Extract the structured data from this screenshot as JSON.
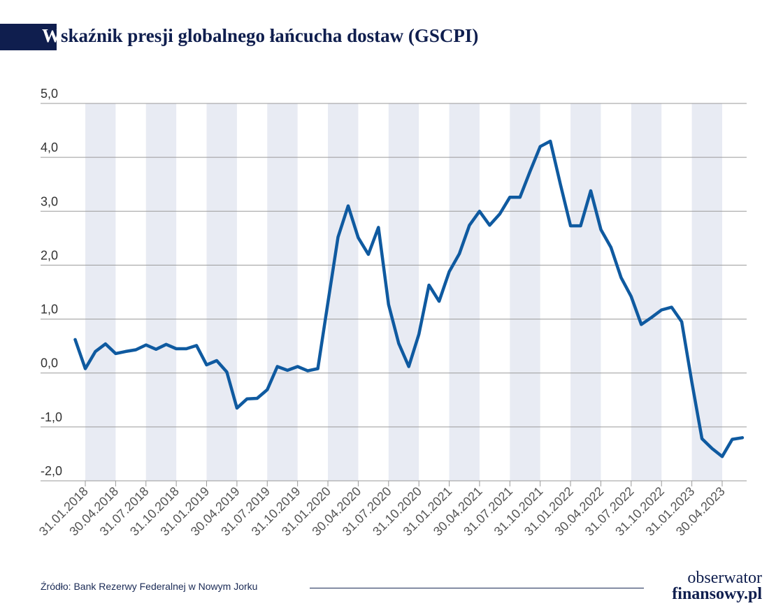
{
  "title": {
    "first_letter": "W",
    "rest": "skaźnik presji globalnego łańcucha dostaw (GSCPI)"
  },
  "source": "Źródło: Bank Rezerwy Federalnej w Nowym Jorku",
  "logo": {
    "line1": "obserwator",
    "line2": "finansowy.pl"
  },
  "colors": {
    "line": "#0f5aa0",
    "band": "#e8ebf3",
    "grid": "#9a9a9a",
    "title": "#0f1e4e"
  },
  "chart_data": {
    "type": "line",
    "title": "Wskaźnik presji globalnego łańcucha dostaw (GSCPI)",
    "xlabel": "",
    "ylabel": "",
    "ylim": [
      -2.0,
      5.0
    ],
    "yticks": [
      5.0,
      4.0,
      3.0,
      2.0,
      1.0,
      0.0,
      -1.0,
      -2.0
    ],
    "ytick_labels": [
      "5,0",
      "4,0",
      "3,0",
      "2,0",
      "1,0",
      "0,0",
      "-1,0",
      "-2,0"
    ],
    "xtick_labels": [
      "31.01.2018",
      "30.04.2018",
      "31.07.2018",
      "31.10.2018",
      "31.01.2019",
      "30.04.2019",
      "31.07.2019",
      "31.10.2019",
      "31.01.2020",
      "30.04.2020",
      "31.07.2020",
      "31.10.2020",
      "31.01.2021",
      "30.04.2021",
      "31.07.2021",
      "31.10.2021",
      "31.01.2022",
      "30.04.2022",
      "31.07.2022",
      "31.10.2022",
      "31.01.2023",
      "30.04.2023"
    ],
    "grid": true,
    "legend": "none",
    "series": [
      {
        "x": [
          "2017-12",
          "2018-01",
          "2018-02",
          "2018-03",
          "2018-04",
          "2018-05",
          "2018-06",
          "2018-07",
          "2018-08",
          "2018-09",
          "2018-10",
          "2018-11",
          "2018-12",
          "2019-01",
          "2019-02",
          "2019-03",
          "2019-04",
          "2019-05",
          "2019-06",
          "2019-07",
          "2019-08",
          "2019-09",
          "2019-10",
          "2019-11",
          "2019-12",
          "2020-01",
          "2020-02",
          "2020-03",
          "2020-04",
          "2020-05",
          "2020-06",
          "2020-07",
          "2020-08",
          "2020-09",
          "2020-10",
          "2020-11",
          "2020-12",
          "2021-01",
          "2021-02",
          "2021-03",
          "2021-04",
          "2021-05",
          "2021-06",
          "2021-07",
          "2021-08",
          "2021-09",
          "2021-10",
          "2021-11",
          "2021-12",
          "2022-01",
          "2022-02",
          "2022-03",
          "2022-04",
          "2022-05",
          "2022-06",
          "2022-07",
          "2022-08",
          "2022-09",
          "2022-10",
          "2022-11",
          "2022-12",
          "2023-01",
          "2023-02",
          "2023-03",
          "2023-04",
          "2023-05",
          "2023-06"
        ],
        "values": [
          0.62,
          0.08,
          0.4,
          0.54,
          0.36,
          0.4,
          0.43,
          0.52,
          0.44,
          0.53,
          0.45,
          0.45,
          0.51,
          0.15,
          0.23,
          0.02,
          -0.65,
          -0.48,
          -0.47,
          -0.31,
          0.12,
          0.05,
          0.12,
          0.04,
          0.08,
          1.3,
          2.52,
          3.1,
          2.51,
          2.2,
          2.7,
          1.27,
          0.55,
          0.12,
          0.72,
          1.63,
          1.33,
          1.88,
          2.21,
          2.74,
          3.0,
          2.74,
          2.95,
          3.26,
          3.26,
          3.74,
          4.2,
          4.3,
          3.5,
          2.73,
          2.73,
          3.38,
          2.66,
          2.33,
          1.77,
          1.42,
          0.9,
          1.03,
          1.17,
          1.22,
          0.95,
          -0.17,
          -1.22,
          -1.4,
          -1.55,
          -1.23,
          -1.2
        ]
      }
    ]
  }
}
